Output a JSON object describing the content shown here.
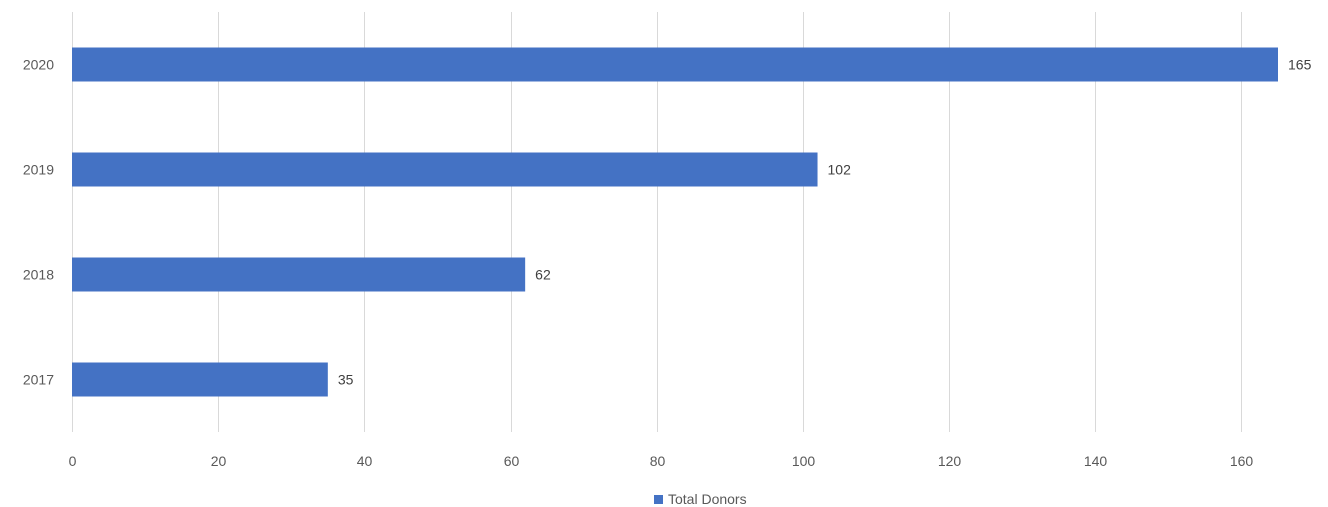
{
  "chart_data": {
    "type": "bar",
    "orientation": "horizontal",
    "categories": [
      "2017",
      "2018",
      "2019",
      "2020"
    ],
    "series": [
      {
        "name": "Total Donors",
        "values": [
          35,
          62,
          102,
          165
        ],
        "color": "#4472C4"
      }
    ],
    "data_labels": [
      "35",
      "62",
      "102",
      "165"
    ],
    "x_ticks": [
      "0",
      "20",
      "40",
      "60",
      "80",
      "100",
      "120",
      "140",
      "160"
    ],
    "xlim": [
      0,
      165
    ],
    "grid": true,
    "legend": {
      "position": "bottom",
      "entries": [
        "Total Donors"
      ]
    },
    "title": "",
    "xlabel": "",
    "ylabel": ""
  },
  "colors": {
    "bar": "#4472C4",
    "grid": "#d9d9d9",
    "text": "#595959"
  }
}
